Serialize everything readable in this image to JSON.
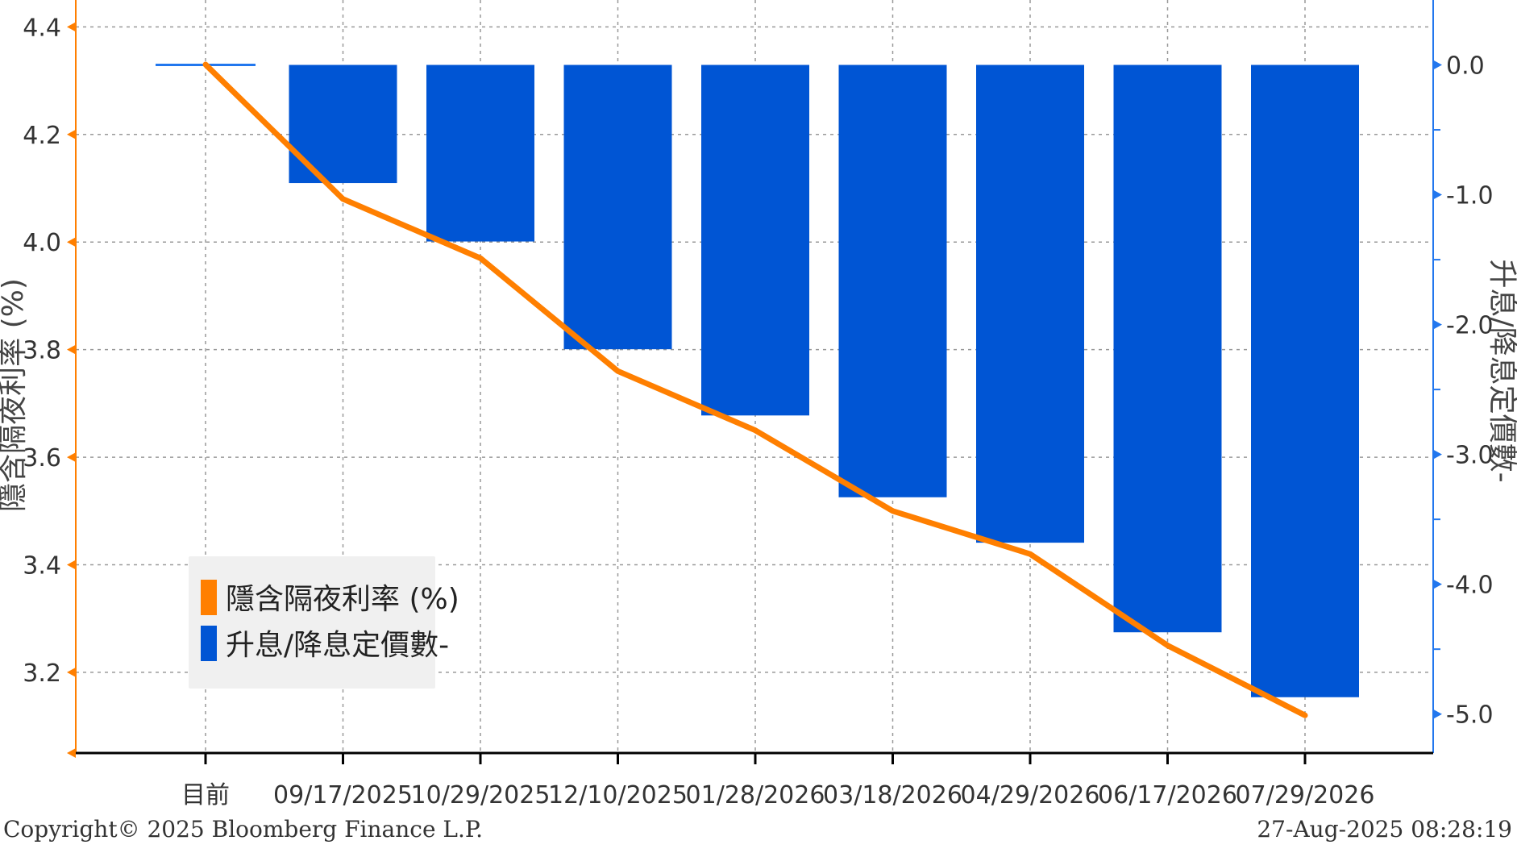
{
  "chart_data": {
    "type": "bar+line",
    "categories": [
      "目前",
      "09/17/2025",
      "10/29/2025",
      "12/10/2025",
      "01/28/2026",
      "03/18/2026",
      "04/29/2026",
      "06/17/2026",
      "07/29/2026"
    ],
    "series": [
      {
        "name": "隱含隔夜利率 (%)",
        "type": "line",
        "axis": "left",
        "color": "#FF7F00",
        "values": [
          4.33,
          4.08,
          3.97,
          3.76,
          3.65,
          3.5,
          3.42,
          3.25,
          3.12
        ]
      },
      {
        "name": "升息/降息定價數-",
        "type": "bar",
        "axis": "right",
        "color": "#0055D4",
        "values": [
          0.0,
          -0.91,
          -1.36,
          -2.19,
          -2.7,
          -3.33,
          -3.68,
          -4.37,
          -4.87
        ]
      }
    ],
    "left_axis": {
      "label": "隱含隔夜利率 (%)",
      "ticks": [
        "3.2",
        "3.4",
        "3.6",
        "3.8",
        "4.0",
        "4.2",
        "4.4"
      ],
      "range": [
        3.05,
        4.45
      ],
      "color": "#FF7F00"
    },
    "right_axis": {
      "label": "升息/降息定價數-",
      "ticks": [
        "0.0",
        "-1.0",
        "-2.0",
        "-3.0",
        "-4.0",
        "-5.0"
      ],
      "range": [
        0.5,
        -5.3
      ],
      "color": "#2277EE"
    },
    "grid": true,
    "legend": "lower-left"
  },
  "footer": {
    "copyright": "Copyright© 2025 Bloomberg Finance L.P.",
    "timestamp": "27-Aug-2025 08:28:19"
  }
}
